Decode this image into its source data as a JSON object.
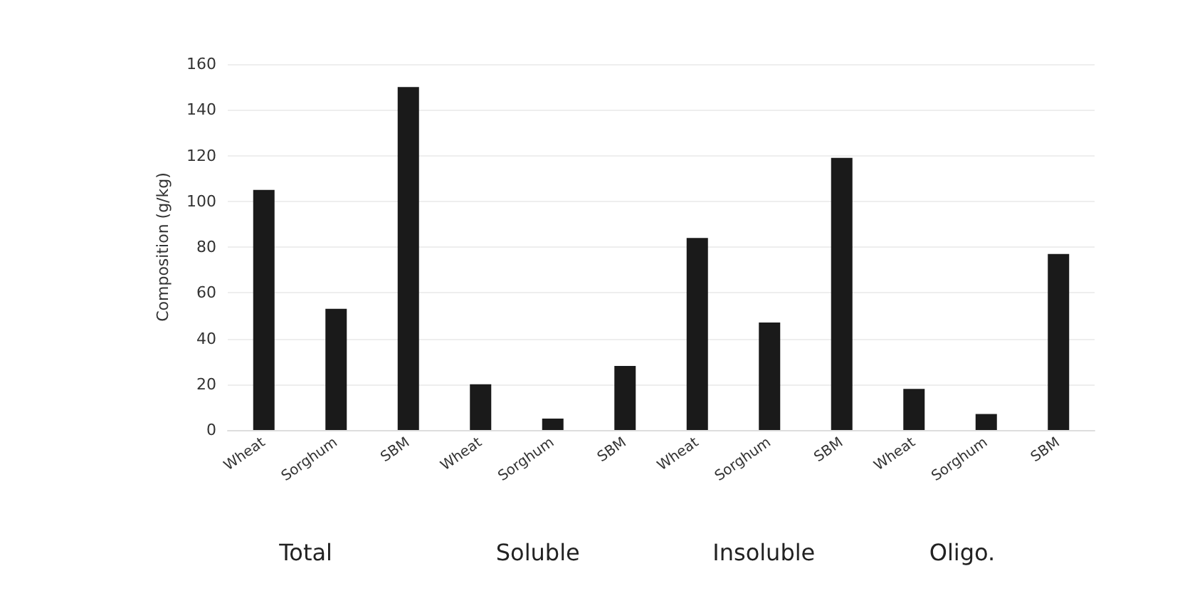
{
  "chart_data": {
    "type": "bar",
    "ylabel": "Composition (g/kg)",
    "categories": [
      "Wheat",
      "Sorghum",
      "SBM",
      "Wheat",
      "Sorghum",
      "SBM",
      "Wheat",
      "Sorghum",
      "SBM",
      "Wheat",
      "Sorghum",
      "SBM"
    ],
    "values": [
      105,
      53,
      150,
      20,
      5,
      28,
      84,
      47,
      119,
      18,
      7,
      77
    ],
    "color": "#1a1a1a",
    "ylim": [
      0,
      160
    ],
    "yticks": [
      0,
      20,
      40,
      60,
      80,
      100,
      120,
      140,
      160
    ],
    "grid": "y",
    "annotations": [
      "Total",
      "Soluble",
      "Insoluble",
      "Oligo."
    ]
  }
}
